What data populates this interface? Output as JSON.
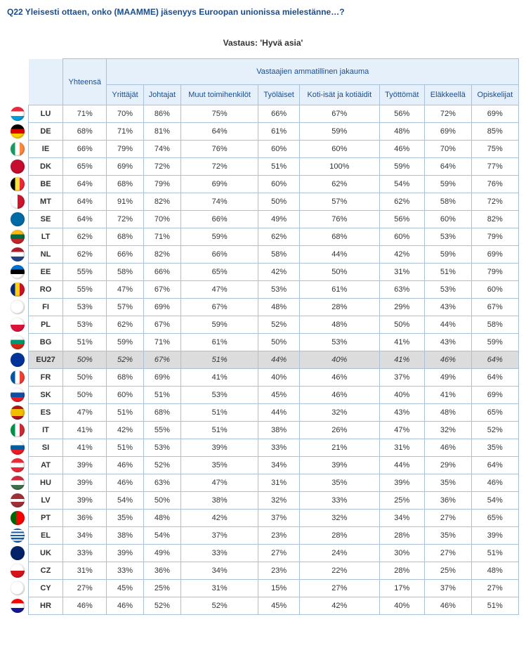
{
  "question": "Q22 Yleisesti ottaen, onko (MAAMME) jäsenyys Euroopan unionissa mielestänne…?",
  "answer": "Vastaus: 'Hyvä asia'",
  "group_header": "Vastaajien ammatillinen jakauma",
  "total_header": "Yhteensä",
  "columns": [
    "Yrittäjät",
    "Johtajat",
    "Muut toimihenkilöt",
    "Työläiset",
    "Koti-isät ja kotiäidit",
    "Työttömät",
    "Eläkkeellä",
    "Opiskelijat"
  ],
  "rows": [
    {
      "code": "LU",
      "flag_css": "background:linear-gradient(to bottom,#ed2939 33%,#fff 33%,#fff 66%,#00a1de 66%)",
      "vals": [
        "71%",
        "70%",
        "86%",
        "75%",
        "66%",
        "67%",
        "56%",
        "72%",
        "69%"
      ]
    },
    {
      "code": "DE",
      "flag_css": "background:linear-gradient(to bottom,#000 33%,#dd0000 33%,#dd0000 66%,#ffce00 66%)",
      "vals": [
        "68%",
        "71%",
        "81%",
        "64%",
        "61%",
        "59%",
        "48%",
        "69%",
        "85%"
      ]
    },
    {
      "code": "IE",
      "flag_css": "background:linear-gradient(to right,#169b62 33%,#fff 33%,#fff 66%,#ff883e 66%)",
      "vals": [
        "66%",
        "79%",
        "74%",
        "76%",
        "60%",
        "60%",
        "46%",
        "70%",
        "75%"
      ]
    },
    {
      "code": "DK",
      "flag_css": "background:#c60c30",
      "vals": [
        "65%",
        "69%",
        "72%",
        "72%",
        "51%",
        "100%",
        "59%",
        "64%",
        "77%"
      ]
    },
    {
      "code": "BE",
      "flag_css": "background:linear-gradient(to right,#000 33%,#fae042 33%,#fae042 66%,#ed2939 66%)",
      "vals": [
        "64%",
        "68%",
        "79%",
        "69%",
        "60%",
        "62%",
        "54%",
        "59%",
        "76%"
      ]
    },
    {
      "code": "MT",
      "flag_css": "background:linear-gradient(to right,#fff 50%,#cf142b 50%)",
      "vals": [
        "64%",
        "91%",
        "82%",
        "74%",
        "50%",
        "57%",
        "62%",
        "58%",
        "72%"
      ]
    },
    {
      "code": "SE",
      "flag_css": "background:#006aa7",
      "vals": [
        "64%",
        "72%",
        "70%",
        "66%",
        "49%",
        "76%",
        "56%",
        "60%",
        "82%"
      ]
    },
    {
      "code": "LT",
      "flag_css": "background:linear-gradient(to bottom,#fdb913 33%,#006a44 33%,#006a44 66%,#c1272d 66%)",
      "vals": [
        "62%",
        "68%",
        "71%",
        "59%",
        "62%",
        "68%",
        "60%",
        "53%",
        "79%"
      ]
    },
    {
      "code": "NL",
      "flag_css": "background:linear-gradient(to bottom,#ae1c28 33%,#fff 33%,#fff 66%,#21468b 66%)",
      "vals": [
        "62%",
        "66%",
        "82%",
        "66%",
        "58%",
        "44%",
        "42%",
        "59%",
        "69%"
      ]
    },
    {
      "code": "EE",
      "flag_css": "background:linear-gradient(to bottom,#0072ce 33%,#000 33%,#000 66%,#fff 66%)",
      "vals": [
        "55%",
        "58%",
        "66%",
        "65%",
        "42%",
        "50%",
        "31%",
        "51%",
        "79%"
      ]
    },
    {
      "code": "RO",
      "flag_css": "background:linear-gradient(to right,#002b7f 33%,#fcd116 33%,#fcd116 66%,#ce1126 66%)",
      "vals": [
        "55%",
        "47%",
        "67%",
        "47%",
        "53%",
        "61%",
        "63%",
        "53%",
        "60%"
      ]
    },
    {
      "code": "FI",
      "flag_css": "background:#fff",
      "vals": [
        "53%",
        "57%",
        "69%",
        "67%",
        "48%",
        "28%",
        "29%",
        "43%",
        "67%"
      ]
    },
    {
      "code": "PL",
      "flag_css": "background:linear-gradient(to bottom,#fff 50%,#dc143c 50%)",
      "vals": [
        "53%",
        "62%",
        "67%",
        "59%",
        "52%",
        "48%",
        "50%",
        "44%",
        "58%"
      ]
    },
    {
      "code": "BG",
      "flag_css": "background:linear-gradient(to bottom,#fff 33%,#00966e 33%,#00966e 66%,#d62612 66%)",
      "vals": [
        "51%",
        "59%",
        "71%",
        "61%",
        "50%",
        "53%",
        "41%",
        "43%",
        "59%"
      ]
    },
    {
      "code": "EU27",
      "flag_css": "background:#003399",
      "hl": true,
      "vals": [
        "50%",
        "52%",
        "67%",
        "51%",
        "44%",
        "40%",
        "41%",
        "46%",
        "64%"
      ]
    },
    {
      "code": "FR",
      "flag_css": "background:linear-gradient(to right,#0055a4 33%,#fff 33%,#fff 66%,#ef4135 66%)",
      "vals": [
        "50%",
        "68%",
        "69%",
        "41%",
        "40%",
        "46%",
        "37%",
        "49%",
        "64%"
      ]
    },
    {
      "code": "SK",
      "flag_css": "background:linear-gradient(to bottom,#fff 33%,#0b4ea2 33%,#0b4ea2 66%,#ee1c25 66%)",
      "vals": [
        "50%",
        "60%",
        "51%",
        "53%",
        "45%",
        "46%",
        "40%",
        "41%",
        "69%"
      ]
    },
    {
      "code": "ES",
      "flag_css": "background:linear-gradient(to bottom,#aa151b 25%,#f1bf00 25%,#f1bf00 75%,#aa151b 75%)",
      "vals": [
        "47%",
        "51%",
        "68%",
        "51%",
        "44%",
        "32%",
        "43%",
        "48%",
        "65%"
      ]
    },
    {
      "code": "IT",
      "flag_css": "background:linear-gradient(to right,#009246 33%,#fff 33%,#fff 66%,#ce2b37 66%)",
      "vals": [
        "41%",
        "42%",
        "55%",
        "51%",
        "38%",
        "26%",
        "47%",
        "32%",
        "52%"
      ]
    },
    {
      "code": "SI",
      "flag_css": "background:linear-gradient(to bottom,#fff 33%,#005da4 33%,#005da4 66%,#ed1c24 66%)",
      "vals": [
        "41%",
        "51%",
        "53%",
        "39%",
        "33%",
        "21%",
        "31%",
        "46%",
        "35%"
      ]
    },
    {
      "code": "AT",
      "flag_css": "background:linear-gradient(to bottom,#ed2939 33%,#fff 33%,#fff 66%,#ed2939 66%)",
      "vals": [
        "39%",
        "46%",
        "52%",
        "35%",
        "34%",
        "39%",
        "44%",
        "29%",
        "64%"
      ]
    },
    {
      "code": "HU",
      "flag_css": "background:linear-gradient(to bottom,#cd2a3e 33%,#fff 33%,#fff 66%,#436f4d 66%)",
      "vals": [
        "39%",
        "46%",
        "63%",
        "47%",
        "31%",
        "35%",
        "39%",
        "35%",
        "46%"
      ]
    },
    {
      "code": "LV",
      "flag_css": "background:linear-gradient(to bottom,#9e3039 40%,#fff 40%,#fff 60%,#9e3039 60%)",
      "vals": [
        "39%",
        "54%",
        "50%",
        "38%",
        "32%",
        "33%",
        "25%",
        "36%",
        "54%"
      ]
    },
    {
      "code": "PT",
      "flag_css": "background:linear-gradient(to right,#006600 40%,#ff0000 40%)",
      "vals": [
        "36%",
        "35%",
        "48%",
        "42%",
        "37%",
        "32%",
        "34%",
        "27%",
        "65%"
      ]
    },
    {
      "code": "EL",
      "flag_css": "background:repeating-linear-gradient(to bottom,#0d5eaf 0,#0d5eaf 2.2px,#fff 2.2px,#fff 4.4px)",
      "vals": [
        "34%",
        "38%",
        "54%",
        "37%",
        "23%",
        "28%",
        "28%",
        "35%",
        "39%"
      ]
    },
    {
      "code": "UK",
      "flag_css": "background:#012169",
      "vals": [
        "33%",
        "39%",
        "49%",
        "33%",
        "27%",
        "24%",
        "30%",
        "27%",
        "51%"
      ]
    },
    {
      "code": "CZ",
      "flag_css": "background:linear-gradient(to bottom,#fff 50%,#d7141a 50%)",
      "vals": [
        "31%",
        "33%",
        "36%",
        "34%",
        "23%",
        "22%",
        "28%",
        "25%",
        "48%"
      ]
    },
    {
      "code": "CY",
      "flag_css": "background:#fff",
      "vals": [
        "27%",
        "45%",
        "25%",
        "31%",
        "15%",
        "27%",
        "17%",
        "37%",
        "27%"
      ]
    },
    {
      "code": "HR",
      "flag_css": "background:linear-gradient(to bottom,#ff0000 33%,#fff 33%,#fff 66%,#171796 66%)",
      "vals": [
        "46%",
        "46%",
        "52%",
        "52%",
        "45%",
        "42%",
        "40%",
        "46%",
        "51%"
      ]
    }
  ]
}
